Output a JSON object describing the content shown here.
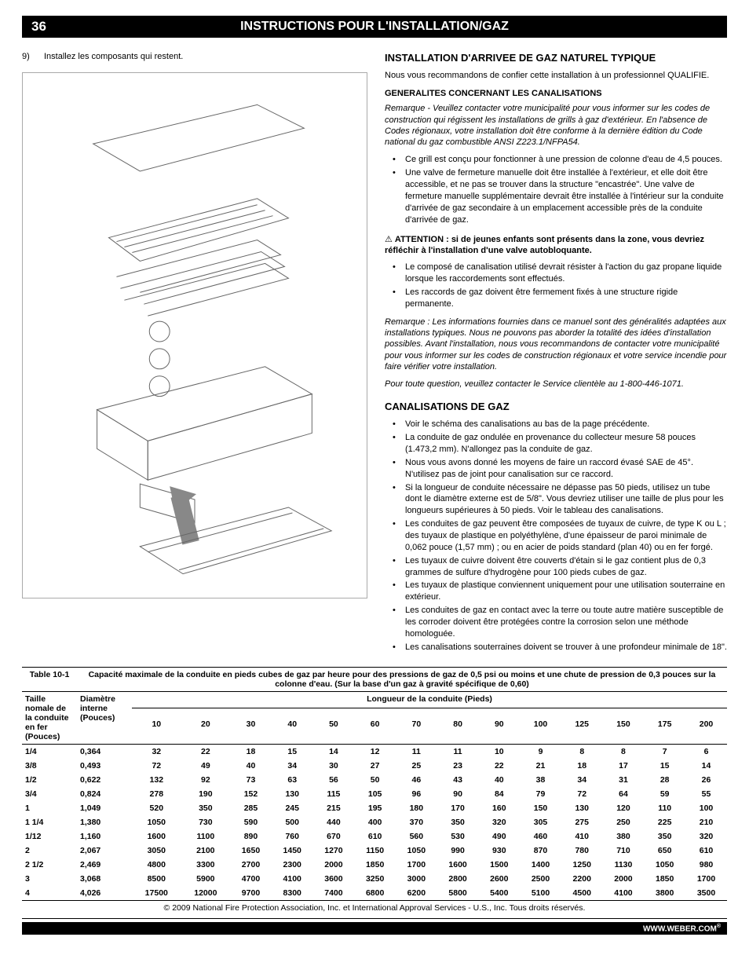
{
  "header": {
    "page_number": "36",
    "title": "INSTRUCTIONS POUR L'INSTALLATION/GAZ"
  },
  "left": {
    "step_num": "9)",
    "step_text": "Installez les composants qui restent."
  },
  "right": {
    "sec1_title": "INSTALLATION D'ARRIVEE DE GAZ NATUREL TYPIQUE",
    "sec1_p1": "Nous vous recommandons de confier cette installation à un professionnel QUALIFIE.",
    "sec1_sub": "GENERALITES CONCERNANT LES CANALISATIONS",
    "sec1_note": "Remarque - Veuillez contacter votre municipalité pour vous informer sur les codes de construction qui régissent les installations de grills à gaz d'extérieur. En l'absence de Codes régionaux, votre installation doit être conforme à la dernière édition du Code national du gaz combustible ANSI Z223.1/NFPA54.",
    "sec1_bullets": [
      "Ce grill est conçu pour fonctionner à une pression de colonne d'eau de 4,5 pouces.",
      "Une valve de fermeture manuelle doit être installée à l'extérieur, et elle doit être accessible, et ne pas se trouver dans la structure \"encastrée\". Une valve de fermeture manuelle supplémentaire devrait être installée à l'intérieur sur la conduite d'arrivée de gaz secondaire à un emplacement accessible près de la conduite d'arrivée de gaz."
    ],
    "warn_text": "ATTENTION : si de jeunes enfants sont présents dans la zone, vous devriez réfléchir à l'installation d'une valve autobloquante.",
    "warn_bullets": [
      "Le composé de canalisation utilisé devrait résister à l'action du gaz propane liquide lorsque les raccordements sont effectués.",
      "Les raccords de gaz doivent être fermement fixés à une structure rigide permanente."
    ],
    "sec1_note2": "Remarque : Les informations fournies dans ce manuel sont des généralités adaptées aux installations typiques. Nous ne pouvons pas aborder la totalité des idées d'installation possibles. Avant l'installation, nous vous recommandons de contacter votre municipalité pour vous informer sur les codes de construction régionaux et votre service incendie pour faire vérifier votre installation.",
    "sec1_note3": "Pour toute question, veuillez contacter le Service clientèle au 1-800-446-1071.",
    "sec2_title": "CANALISATIONS DE GAZ",
    "sec2_bullets": [
      "Voir le schéma des canalisations au bas de la page précédente.",
      "La conduite de gaz ondulée en provenance du collecteur mesure 58 pouces (1.473,2 mm). N'allongez pas la conduite de gaz.",
      "Nous vous avons donné les moyens de faire un raccord évasé SAE de 45°. N'utilisez pas de joint pour canalisation sur ce raccord.",
      "Si la longueur de conduite nécessaire ne dépasse pas 50 pieds, utilisez un tube dont le diamètre externe est de 5/8\". Vous devriez utiliser une taille de plus pour les longueurs supérieures à 50 pieds. Voir le tableau des canalisations.",
      "Les conduites de gaz peuvent être composées de tuyaux de cuivre, de type K ou L ; des tuyaux de plastique en polyéthylène, d'une épaisseur de paroi minimale de 0,062 pouce (1,57 mm) ; ou en acier de poids standard (plan 40) ou en fer forgé.",
      "Les tuyaux de cuivre doivent être couverts d'étain si le gaz contient plus de 0,3 grammes de sulfure d'hydrogène pour 100 pieds cubes de gaz.",
      "Les tuyaux de plastique conviennent uniquement pour une utilisation souterraine en extérieur.",
      "Les conduites de gaz en contact avec la terre ou toute autre matière susceptible de les corroder doivent être protégées contre la corrosion selon une méthode homologuée.",
      "Les canalisations souterraines doivent se trouver à une profondeur minimale de 18\"."
    ]
  },
  "table": {
    "label": "Table 10-1",
    "caption": "Capacité maximale de la conduite en pieds cubes de gaz par heure pour des pressions de gaz de 0,5 psi ou moins et une chute de pression de 0,3 pouces sur la colonne d'eau. (Sur la base d'un gaz à gravité spécifique de 0,60)",
    "size_head": "Taille nomale de la conduite en fer (Pouces)",
    "diam_head": "Diamètre interne (Pouces)",
    "length_head": "Longueur de la conduite (Pieds)",
    "length_cols": [
      "10",
      "20",
      "30",
      "40",
      "50",
      "60",
      "70",
      "80",
      "90",
      "100",
      "125",
      "150",
      "175",
      "200"
    ],
    "rows": [
      {
        "size": "1/4",
        "diam": "0,364",
        "v": [
          "32",
          "22",
          "18",
          "15",
          "14",
          "12",
          "11",
          "11",
          "10",
          "9",
          "8",
          "8",
          "7",
          "6"
        ]
      },
      {
        "size": "3/8",
        "diam": "0,493",
        "v": [
          "72",
          "49",
          "40",
          "34",
          "30",
          "27",
          "25",
          "23",
          "22",
          "21",
          "18",
          "17",
          "15",
          "14"
        ]
      },
      {
        "size": "1/2",
        "diam": "0,622",
        "v": [
          "132",
          "92",
          "73",
          "63",
          "56",
          "50",
          "46",
          "43",
          "40",
          "38",
          "34",
          "31",
          "28",
          "26"
        ]
      },
      {
        "size": "3/4",
        "diam": "0,824",
        "v": [
          "278",
          "190",
          "152",
          "130",
          "115",
          "105",
          "96",
          "90",
          "84",
          "79",
          "72",
          "64",
          "59",
          "55"
        ]
      },
      {
        "size": "1",
        "diam": "1,049",
        "v": [
          "520",
          "350",
          "285",
          "245",
          "215",
          "195",
          "180",
          "170",
          "160",
          "150",
          "130",
          "120",
          "110",
          "100"
        ]
      },
      {
        "size": "1 1/4",
        "diam": "1,380",
        "v": [
          "1050",
          "730",
          "590",
          "500",
          "440",
          "400",
          "370",
          "350",
          "320",
          "305",
          "275",
          "250",
          "225",
          "210"
        ]
      },
      {
        "size": "1/12",
        "diam": "1,160",
        "v": [
          "1600",
          "1100",
          "890",
          "760",
          "670",
          "610",
          "560",
          "530",
          "490",
          "460",
          "410",
          "380",
          "350",
          "320"
        ]
      },
      {
        "size": "2",
        "diam": "2,067",
        "v": [
          "3050",
          "2100",
          "1650",
          "1450",
          "1270",
          "1150",
          "1050",
          "990",
          "930",
          "870",
          "780",
          "710",
          "650",
          "610"
        ]
      },
      {
        "size": "2 1/2",
        "diam": "2,469",
        "v": [
          "4800",
          "3300",
          "2700",
          "2300",
          "2000",
          "1850",
          "1700",
          "1600",
          "1500",
          "1400",
          "1250",
          "1130",
          "1050",
          "980"
        ]
      },
      {
        "size": "3",
        "diam": "3,068",
        "v": [
          "8500",
          "5900",
          "4700",
          "4100",
          "3600",
          "3250",
          "3000",
          "2800",
          "2600",
          "2500",
          "2200",
          "2000",
          "1850",
          "1700"
        ]
      },
      {
        "size": "4",
        "diam": "4,026",
        "v": [
          "17500",
          "12000",
          "9700",
          "8300",
          "7400",
          "6800",
          "6200",
          "5800",
          "5400",
          "5100",
          "4500",
          "4100",
          "3800",
          "3500"
        ]
      }
    ],
    "copyright": "© 2009 National Fire Protection Association, Inc. et International Approval Services - U.S., Inc. Tous droits réservés."
  },
  "footer": {
    "url": "WWW.WEBER.COM",
    "reg": "®"
  }
}
